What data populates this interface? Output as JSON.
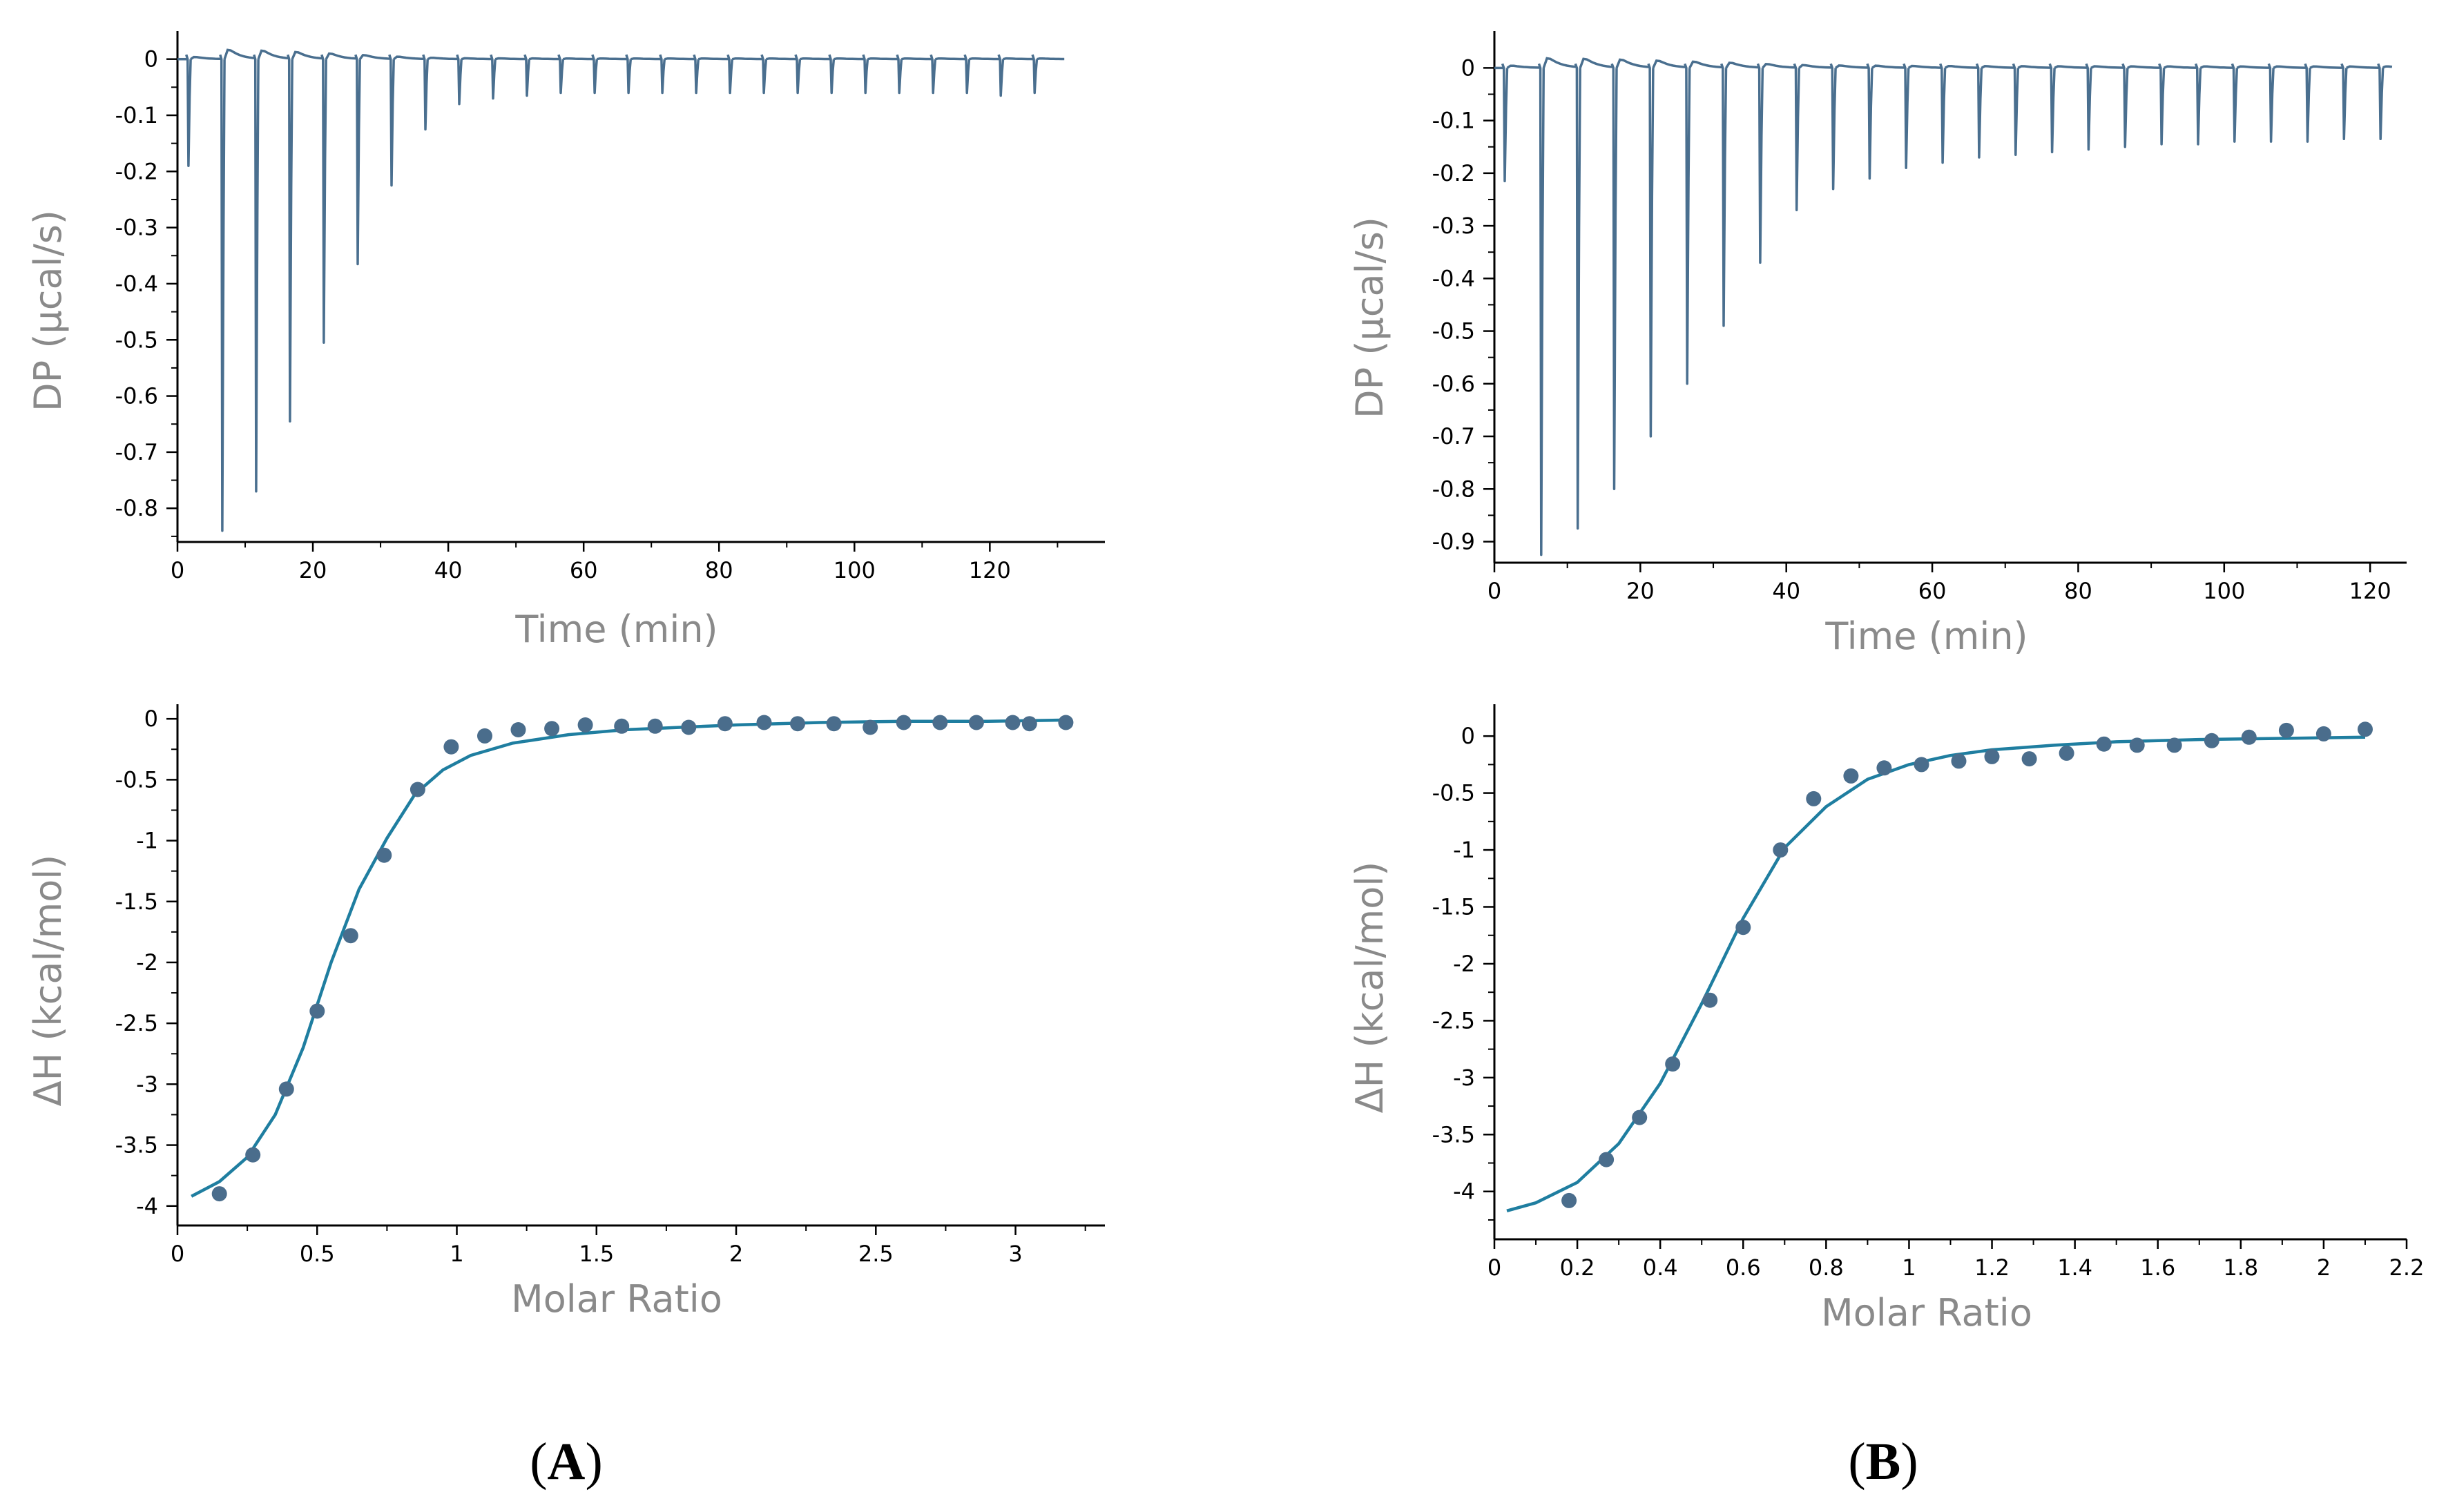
{
  "figure": {
    "panel_labels": [
      {
        "open": "(",
        "letter": "A",
        "close": ")"
      },
      {
        "open": "(",
        "letter": "B",
        "close": ")"
      }
    ]
  },
  "colors": {
    "thermogram": "#4a6f8f",
    "fit_line": "#1f7ea0",
    "points": "#4a6d8c",
    "axis": "#000000",
    "label": "#8a8a8a"
  },
  "chart_data": [
    {
      "id": "A-top",
      "type": "line",
      "xlabel": "Time (min)",
      "ylabel": "DP (µcal/s)",
      "xlim": [
        0,
        137
      ],
      "ylim": [
        -0.86,
        0.05
      ],
      "xticks": [
        0,
        20,
        40,
        60,
        80,
        100,
        120
      ],
      "xtick_labels": [
        "0",
        "20",
        "40",
        "60",
        "80",
        "100",
        "120"
      ],
      "yticks": [
        0,
        -0.1,
        -0.2,
        -0.3,
        -0.4,
        -0.5,
        -0.6,
        -0.7,
        -0.8
      ],
      "ytick_labels": [
        "0",
        "-0.1",
        "-0.2",
        "-0.3",
        "-0.4",
        "-0.5",
        "-0.6",
        "-0.7",
        "-0.8"
      ],
      "injection_start": 1.5,
      "injection_interval": 5,
      "time_end": 131,
      "peaks": [
        -0.19,
        -0.84,
        -0.77,
        -0.645,
        -0.505,
        -0.365,
        -0.225,
        -0.125,
        -0.08,
        -0.07,
        -0.065,
        -0.06,
        -0.06,
        -0.06,
        -0.06,
        -0.06,
        -0.06,
        -0.06,
        -0.06,
        -0.06,
        -0.06,
        -0.06,
        -0.06,
        -0.06,
        -0.065,
        -0.06
      ]
    },
    {
      "id": "B-top",
      "type": "line",
      "xlabel": "Time (min)",
      "ylabel": "DP (µcal/s)",
      "xlim": [
        0,
        125
      ],
      "ylim": [
        -0.94,
        0.07
      ],
      "xticks": [
        0,
        20,
        40,
        60,
        80,
        100,
        120
      ],
      "xtick_labels": [
        "0",
        "20",
        "40",
        "60",
        "80",
        "100",
        "120"
      ],
      "yticks": [
        0,
        -0.1,
        -0.2,
        -0.3,
        -0.4,
        -0.5,
        -0.6,
        -0.7,
        -0.8,
        -0.9
      ],
      "ytick_labels": [
        "0",
        "-0.1",
        "-0.2",
        "-0.3",
        "-0.4",
        "-0.5",
        "-0.6",
        "-0.7",
        "-0.8",
        "-0.9"
      ],
      "injection_start": 1.3,
      "injection_interval": 5,
      "time_end": 123,
      "peaks": [
        -0.215,
        -0.925,
        -0.875,
        -0.8,
        -0.7,
        -0.6,
        -0.49,
        -0.37,
        -0.27,
        -0.23,
        -0.21,
        -0.19,
        -0.18,
        -0.17,
        -0.165,
        -0.16,
        -0.155,
        -0.15,
        -0.145,
        -0.145,
        -0.14,
        -0.14,
        -0.14,
        -0.135,
        -0.135
      ]
    },
    {
      "id": "A-bottom",
      "type": "scatter",
      "xlabel": "Molar Ratio",
      "ylabel": "ΔH (kcal/mol)",
      "xlim": [
        0,
        3.32
      ],
      "ylim": [
        -4.16,
        0.12
      ],
      "xticks": [
        0,
        0.5,
        1,
        1.5,
        2,
        2.5,
        3
      ],
      "xtick_labels": [
        "0",
        "0.5",
        "1",
        "1.5",
        "2",
        "2.5",
        "3"
      ],
      "yticks": [
        0,
        -0.5,
        -1,
        -1.5,
        -2,
        -2.5,
        -3,
        -3.5,
        -4
      ],
      "ytick_labels": [
        "0",
        "-0.5",
        "-1",
        "-1.5",
        "-2",
        "-2.5",
        "-3",
        "-3.5",
        "-4"
      ],
      "points_x": [
        0.15,
        0.27,
        0.39,
        0.5,
        0.62,
        0.74,
        0.86,
        0.98,
        1.1,
        1.22,
        1.34,
        1.46,
        1.59,
        1.71,
        1.83,
        1.96,
        2.1,
        2.22,
        2.35,
        2.48,
        2.6,
        2.73,
        2.86,
        2.99,
        3.05,
        3.18
      ],
      "points_y": [
        -3.9,
        -3.58,
        -3.04,
        -2.4,
        -1.78,
        -1.12,
        -0.58,
        -0.23,
        -0.14,
        -0.09,
        -0.08,
        -0.05,
        -0.06,
        -0.06,
        -0.07,
        -0.04,
        -0.03,
        -0.04,
        -0.04,
        -0.07,
        -0.03,
        -0.03,
        -0.03,
        -0.03,
        -0.04,
        -0.03
      ],
      "fit_x": [
        0.05,
        0.15,
        0.25,
        0.35,
        0.45,
        0.55,
        0.65,
        0.75,
        0.85,
        0.95,
        1.05,
        1.2,
        1.4,
        1.6,
        1.8,
        2.0,
        2.3,
        2.6,
        2.9,
        3.18
      ],
      "fit_y": [
        -3.92,
        -3.8,
        -3.6,
        -3.25,
        -2.7,
        -2.0,
        -1.4,
        -0.98,
        -0.62,
        -0.42,
        -0.3,
        -0.2,
        -0.13,
        -0.09,
        -0.07,
        -0.05,
        -0.03,
        -0.02,
        -0.02,
        -0.01
      ]
    },
    {
      "id": "B-bottom",
      "type": "scatter",
      "xlabel": "Molar Ratio",
      "ylabel": "ΔH (kcal/mol)",
      "xlim": [
        0,
        2.2
      ],
      "ylim": [
        -4.42,
        0.28
      ],
      "xticks": [
        0,
        0.2,
        0.4,
        0.6,
        0.8,
        1,
        1.2,
        1.4,
        1.6,
        1.8,
        2,
        2.2
      ],
      "xtick_labels": [
        "0",
        "0.2",
        "0.4",
        "0.6",
        "0.8",
        "1",
        "1.2",
        "1.4",
        "1.6",
        "1.8",
        "2",
        "2.2"
      ],
      "yticks": [
        0,
        -0.5,
        -1,
        -1.5,
        -2,
        -2.5,
        -3,
        -3.5,
        -4
      ],
      "ytick_labels": [
        "0",
        "-0.5",
        "-1",
        "-1.5",
        "-2",
        "-2.5",
        "-3",
        "-3.5",
        "-4"
      ],
      "points_x": [
        0.18,
        0.27,
        0.35,
        0.43,
        0.52,
        0.6,
        0.69,
        0.77,
        0.86,
        0.94,
        1.03,
        1.12,
        1.2,
        1.29,
        1.38,
        1.47,
        1.55,
        1.64,
        1.73,
        1.82,
        1.91,
        2.0,
        2.1
      ],
      "points_y": [
        -4.08,
        -3.72,
        -3.35,
        -2.88,
        -2.32,
        -1.68,
        -1.0,
        -0.55,
        -0.35,
        -0.28,
        -0.25,
        -0.22,
        -0.18,
        -0.2,
        -0.15,
        -0.07,
        -0.08,
        -0.08,
        -0.04,
        -0.01,
        0.05,
        0.02,
        0.06
      ],
      "fit_x": [
        0.03,
        0.1,
        0.2,
        0.3,
        0.4,
        0.5,
        0.6,
        0.7,
        0.8,
        0.9,
        1.0,
        1.1,
        1.2,
        1.35,
        1.5,
        1.7,
        1.9,
        2.1
      ],
      "fit_y": [
        -4.17,
        -4.1,
        -3.92,
        -3.58,
        -3.05,
        -2.35,
        -1.6,
        -0.98,
        -0.62,
        -0.38,
        -0.25,
        -0.17,
        -0.12,
        -0.08,
        -0.05,
        -0.03,
        -0.02,
        -0.01
      ]
    }
  ]
}
